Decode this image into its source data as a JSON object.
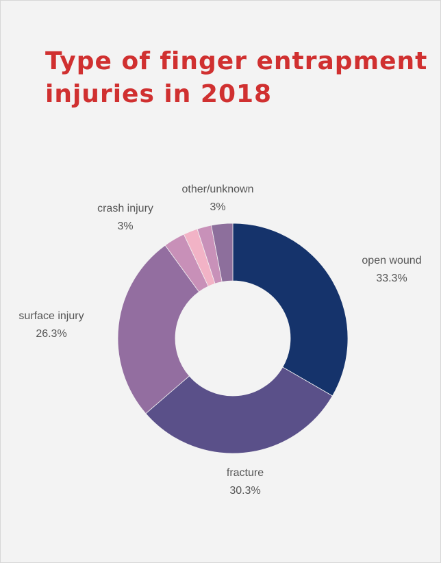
{
  "chart_data": {
    "type": "pie",
    "title_lines": [
      "Type of finger entrapment",
      "injuries in 2018"
    ],
    "slices": [
      {
        "label": "open wound",
        "value": 33.3,
        "value_label": "33.3%",
        "color": "#15336b",
        "show_label": true
      },
      {
        "label": "fracture",
        "value": 30.3,
        "value_label": "30.3%",
        "color": "#5a5089",
        "show_label": true
      },
      {
        "label": "surface injury",
        "value": 26.3,
        "value_label": "26.3%",
        "color": "#936ea0",
        "show_label": true
      },
      {
        "label": "crash injury",
        "value": 3,
        "value_label": "3%",
        "color": "#c890b8",
        "show_label": true
      },
      {
        "label": "",
        "value": 2,
        "value_label": "",
        "color": "#f2b3c6",
        "show_label": false
      },
      {
        "label": "",
        "value": 2,
        "value_label": "",
        "color": "#c891b9",
        "show_label": false
      },
      {
        "label": "other/unknown",
        "value": 3,
        "value_label": "3%",
        "color": "#8d6f9c",
        "show_label": true
      }
    ],
    "hole": "donut",
    "legend": "none"
  }
}
